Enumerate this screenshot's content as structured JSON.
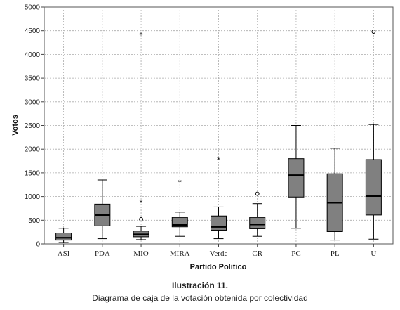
{
  "chart_data": {
    "type": "boxplot",
    "xlabel": "Partido Politico",
    "ylabel": "Votos",
    "ylim": [
      0,
      5000
    ],
    "yticks": [
      0,
      500,
      1000,
      1500,
      2000,
      2500,
      3000,
      3500,
      4000,
      4500,
      5000
    ],
    "grid": true,
    "categories": [
      "ASI",
      "PDA",
      "MIO",
      "MIRA",
      "Verde",
      "CR",
      "PC",
      "PL",
      "U"
    ],
    "boxes": [
      {
        "category": "ASI",
        "whisker_low": 30,
        "q1": 80,
        "median": 130,
        "q3": 230,
        "whisker_high": 330,
        "outliers_circle": [],
        "outliers_star": []
      },
      {
        "category": "PDA",
        "whisker_low": 110,
        "q1": 380,
        "median": 610,
        "q3": 840,
        "whisker_high": 1350,
        "outliers_circle": [],
        "outliers_star": []
      },
      {
        "category": "MIO",
        "whisker_low": 90,
        "q1": 150,
        "median": 200,
        "q3": 270,
        "whisker_high": 370,
        "outliers_circle": [
          520
        ],
        "outliers_star": [
          4420,
          880
        ]
      },
      {
        "category": "MIRA",
        "whisker_low": 160,
        "q1": 360,
        "median": 400,
        "q3": 560,
        "whisker_high": 670,
        "outliers_circle": [],
        "outliers_star": [
          1310
        ]
      },
      {
        "category": "Verde",
        "whisker_low": 110,
        "q1": 290,
        "median": 360,
        "q3": 590,
        "whisker_high": 780,
        "outliers_circle": [],
        "outliers_star": [
          1790
        ]
      },
      {
        "category": "CR",
        "whisker_low": 160,
        "q1": 320,
        "median": 410,
        "q3": 560,
        "whisker_high": 850,
        "outliers_circle": [
          1060
        ],
        "outliers_star": []
      },
      {
        "category": "PC",
        "whisker_low": 330,
        "q1": 990,
        "median": 1450,
        "q3": 1800,
        "whisker_high": 2500,
        "outliers_circle": [],
        "outliers_star": []
      },
      {
        "category": "PL",
        "whisker_low": 80,
        "q1": 260,
        "median": 870,
        "q3": 1480,
        "whisker_high": 2020,
        "outliers_circle": [],
        "outliers_star": []
      },
      {
        "category": "U",
        "whisker_low": 100,
        "q1": 610,
        "median": 1010,
        "q3": 1780,
        "whisker_high": 2520,
        "outliers_circle": [
          4480
        ],
        "outliers_star": []
      }
    ],
    "box_color": "#808080"
  },
  "caption": {
    "title": "Ilustración 11.",
    "subtitle": "Diagrama de caja de la votación obtenida por colectividad"
  }
}
